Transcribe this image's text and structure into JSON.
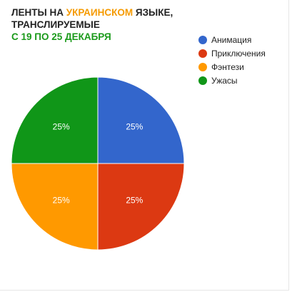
{
  "header": {
    "title_prefix": "ЛЕНТЫ НА ",
    "title_accent": "УКРАИНСКОМ",
    "title_suffix": " ЯЗЫКЕ, ТРАНСЛИРУЕМЫЕ",
    "subtitle": "С 19 ПО 25 ДЕКАБРЯ",
    "accent_color": "#f59a00",
    "subtitle_color": "#1a9a1a"
  },
  "chart_data": {
    "type": "pie",
    "slices": [
      {
        "label": "Анимация",
        "value": 25,
        "display": "25%",
        "color": "#3366cc"
      },
      {
        "label": "Приключения",
        "value": 25,
        "display": "25%",
        "color": "#dc3912"
      },
      {
        "label": "Фэнтези",
        "value": 25,
        "display": "25%",
        "color": "#ff9900"
      },
      {
        "label": "Ужасы",
        "value": 25,
        "display": "25%",
        "color": "#109618"
      }
    ],
    "legend_position": "right"
  }
}
